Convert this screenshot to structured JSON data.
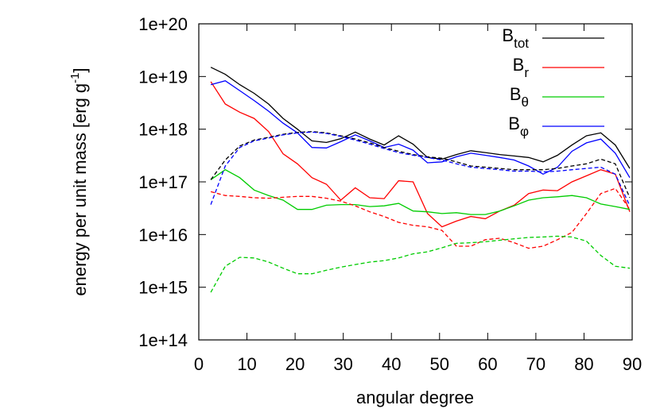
{
  "chart_data": {
    "type": "line",
    "xlabel": "angular degree",
    "ylabel": "energy per unit mass [erg g",
    "ylabel_sup": "-1",
    "ylabel_end": "]",
    "log_y": true,
    "grid": false,
    "legend": "upper right",
    "x": [
      2.5,
      5.5,
      8.5,
      11.5,
      14.5,
      17.5,
      20.5,
      23.5,
      26.5,
      29.5,
      32.5,
      35.5,
      38.5,
      41.5,
      44.5,
      47.5,
      50.5,
      53.5,
      56.5,
      59.5,
      62.5,
      65.5,
      68.5,
      71.5,
      74.5,
      77.5,
      80.5,
      83.5,
      86.5,
      89.5
    ],
    "xlim": [
      0,
      90
    ],
    "xticks": [
      0,
      10,
      20,
      30,
      40,
      50,
      60,
      70,
      80,
      90
    ],
    "ylim": [
      100000000000000.0,
      1e+20
    ],
    "yticks": [
      {
        "value": 100000000000000.0,
        "label": "1e+14"
      },
      {
        "value": 1000000000000000.0,
        "label": "1e+15"
      },
      {
        "value": 1e+16,
        "label": "1e+16"
      },
      {
        "value": 1e+17,
        "label": "1e+17"
      },
      {
        "value": 1e+18,
        "label": "1e+18"
      },
      {
        "value": 1e+19,
        "label": "1e+19"
      },
      {
        "value": 1e+20,
        "label": "1e+20"
      }
    ],
    "series": [
      {
        "name": "B",
        "subscript": "tot",
        "color": "#000000",
        "dashed": false,
        "values": [
          1.5e+19,
          1.1e+19,
          7e+18,
          4.8e+18,
          3e+18,
          1.6e+18,
          1e+18,
          6e+17,
          5.6e+17,
          6.6e+17,
          8.8e+17,
          6.5e+17,
          5e+17,
          7.5e+17,
          5.2e+17,
          2.9e+17,
          2.7e+17,
          3.3e+17,
          3.9e+17,
          3.6e+17,
          3.3e+17,
          3.1e+17,
          2.9e+17,
          2.4e+17,
          3.2e+17,
          5e+17,
          7.5e+17,
          8.5e+17,
          5e+17,
          1.8e+17
        ]
      },
      {
        "name": "B",
        "subscript": "r",
        "color": "#ff0000",
        "dashed": false,
        "values": [
          8e+18,
          3e+18,
          2.1e+18,
          1.6e+18,
          9e+17,
          3.4e+17,
          2.2e+17,
          1.2e+17,
          9e+16,
          4.5e+16,
          7.7e+16,
          5e+16,
          4.8e+16,
          1.05e+17,
          1e+17,
          2.5e+16,
          1.4e+16,
          1.8e+16,
          2.2e+16,
          2e+16,
          2.8e+16,
          3.6e+16,
          6e+16,
          7e+16,
          6.8e+16,
          1e+17,
          1.3e+17,
          1.7e+17,
          1.4e+17,
          2.7e+16
        ]
      },
      {
        "name": "B",
        "subscript": "θ",
        "color": "#00cc00",
        "dashed": false,
        "values": [
          1.1e+17,
          1.7e+17,
          1.2e+17,
          7e+16,
          5.5e+16,
          4.5e+16,
          3e+16,
          3e+16,
          3.6e+16,
          3.7e+16,
          3.7e+16,
          3.4e+16,
          3.5e+16,
          3.9e+16,
          2.8e+16,
          2.7e+16,
          2.5e+16,
          2.6e+16,
          2.4e+16,
          2.4e+16,
          2.8e+16,
          3.5e+16,
          4.5e+16,
          5e+16,
          5.2e+16,
          5.5e+16,
          5e+16,
          3.8e+16,
          3.4e+16,
          3e+16
        ]
      },
      {
        "name": "B",
        "subscript": "φ",
        "color": "#0000ff",
        "dashed": false,
        "values": [
          7e+18,
          8.3e+18,
          5.4e+18,
          3.5e+18,
          2.2e+18,
          1.3e+18,
          8.5e+17,
          4.5e+17,
          4.4e+17,
          5.8e+17,
          7.8e+17,
          6e+17,
          4.5e+17,
          5.2e+17,
          4e+17,
          2.3e+17,
          2.4e+17,
          3e+17,
          3.5e+17,
          3.2e+17,
          2.9e+17,
          2.6e+17,
          2e+17,
          1.4e+17,
          1.9e+17,
          3.8e+17,
          5.5e+17,
          6.5e+17,
          3.5e+17,
          1.2e+17
        ]
      },
      {
        "color": "#000000",
        "dashed": true,
        "values": [
          1.1e+17,
          2.6e+17,
          4.8e+17,
          6.2e+17,
          7e+17,
          8e+17,
          8.7e+17,
          9e+17,
          8.5e+17,
          7.5e+17,
          6.5e+17,
          5.5e+17,
          4.5e+17,
          3.8e+17,
          3.3e+17,
          3e+17,
          2.8e+17,
          2.4e+17,
          2e+17,
          1.9e+17,
          1.8e+17,
          1.7e+17,
          1.7e+17,
          1.7e+17,
          1.8e+17,
          2e+17,
          2.2e+17,
          2.7e+17,
          2.2e+17,
          5e+16
        ]
      },
      {
        "color": "#ff0000",
        "dashed": true,
        "values": [
          6.5e+16,
          5.5e+16,
          5.3e+16,
          5e+16,
          4.9e+16,
          5.1e+16,
          5.3e+16,
          5.3e+16,
          4.9e+16,
          4.3e+16,
          3.5e+16,
          2.7e+16,
          2.2e+16,
          1.7e+16,
          1.5e+16,
          1.4e+16,
          1.2e+16,
          6000000000000000.0,
          6000000000000000.0,
          8000000000000000.0,
          8500000000000000.0,
          7000000000000000.0,
          5500000000000000.0,
          6000000000000000.0,
          8000000000000000.0,
          1.1e+16,
          2.5e+16,
          6e+16,
          7.5e+16,
          3e+16
        ]
      },
      {
        "color": "#00cc00",
        "dashed": true,
        "values": [
          800000000000000.0,
          2500000000000000.0,
          3700000000000000.0,
          3600000000000000.0,
          3000000000000000.0,
          2300000000000000.0,
          1800000000000000.0,
          1800000000000000.0,
          2100000000000000.0,
          2400000000000000.0,
          2700000000000000.0,
          3000000000000000.0,
          3200000000000000.0,
          3600000000000000.0,
          4300000000000000.0,
          4700000000000000.0,
          5600000000000000.0,
          6800000000000000.0,
          7000000000000000.0,
          7300000000000000.0,
          7800000000000000.0,
          8300000000000000.0,
          8800000000000000.0,
          9000000000000000.0,
          9300000000000000.0,
          9000000000000000.0,
          7500000000000000.0,
          4000000000000000.0,
          2500000000000000.0,
          2300000000000000.0
        ]
      },
      {
        "color": "#0000ff",
        "dashed": true,
        "values": [
          3.7e+16,
          2e+17,
          4.5e+17,
          6e+17,
          6.8e+17,
          7.8e+17,
          8.5e+17,
          8.8e+17,
          8.3e+17,
          7.3e+17,
          6.2e+17,
          5.2e+17,
          4.3e+17,
          3.6e+17,
          3.2e+17,
          2.9e+17,
          2.6e+17,
          2.2e+17,
          1.9e+17,
          1.8e+17,
          1.7e+17,
          1.6e+17,
          1.6e+17,
          1.55e+17,
          1.6e+17,
          1.7e+17,
          1.8e+17,
          1.9e+17,
          1.4e+17,
          3.5e+16
        ]
      }
    ]
  }
}
